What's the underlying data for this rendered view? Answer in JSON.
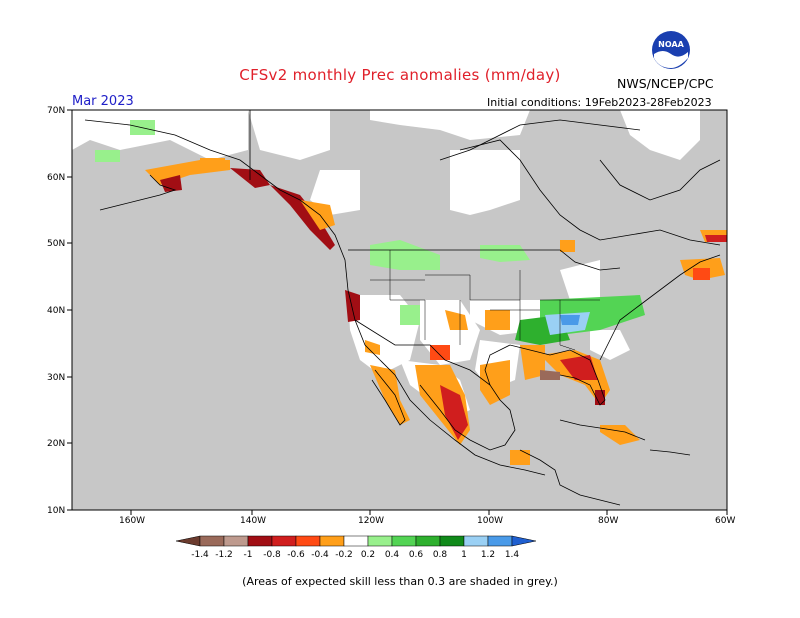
{
  "title": "CFSv2 monthly Prec anomalies (mm/day)",
  "valid_month": "Mar 2023",
  "initial_conditions": "Initial conditions: 19Feb2023-28Feb2023",
  "agency": "NWS/NCEP/CPC",
  "logo_text": "NOAA",
  "footer_note": "(Areas of expected skill less than 0.3 are shaded in grey.)",
  "latitude_labels": [
    "70N",
    "60N",
    "50N",
    "40N",
    "30N",
    "20N",
    "10N"
  ],
  "longitude_labels": [
    "160W",
    "140W",
    "120W",
    "100W",
    "80W",
    "60W"
  ],
  "legend": {
    "labels": [
      "-1.4",
      "-1.2",
      "-1",
      "-0.8",
      "-0.6",
      "-0.4",
      "-0.2",
      "0.2",
      "0.4",
      "0.6",
      "0.8",
      "1",
      "1.2",
      "1.4"
    ],
    "colors": [
      "#6b3b2e",
      "#9a6a5a",
      "#be9a8e",
      "#a10e14",
      "#d01e1e",
      "#ff4a14",
      "#ff9f1a",
      "#ffffff",
      "#98f08c",
      "#53d454",
      "#2eb02e",
      "#108a1a",
      "#9ad0f4",
      "#4a9ae8",
      "#1f5fd0"
    ]
  },
  "colors": {
    "grey_skill": "#c7c7c7",
    "title": "#e0202a",
    "month": "#2020c8"
  }
}
